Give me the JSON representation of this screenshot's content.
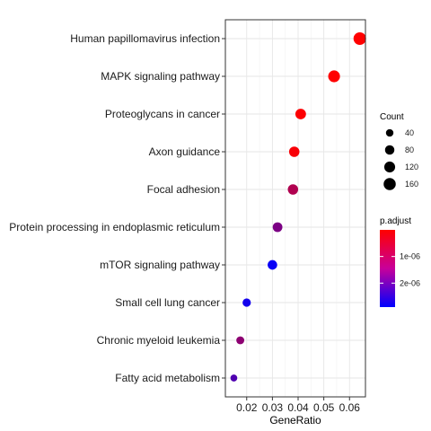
{
  "chart_data": {
    "type": "scatter",
    "title": "",
    "xlabel": "GeneRatio",
    "ylabel": "",
    "xlim": [
      0.0117,
      0.0662
    ],
    "x_ticks": [
      0.02,
      0.03,
      0.04,
      0.05,
      0.06
    ],
    "x_tick_labels": [
      "0.02",
      "0.03",
      "0.04",
      "0.05",
      "0.06"
    ],
    "grid": true,
    "legend_position": "right",
    "categories": [
      "Human papillomavirus infection",
      "MAPK signaling pathway",
      "Proteoglycans in cancer",
      "Axon guidance",
      "Focal adhesion",
      "Protein processing in endoplasmic reticulum",
      "mTOR signaling pathway",
      "Small cell lung cancer",
      "Chronic myeloid leukemia",
      "Fatty acid metabolism"
    ],
    "points": [
      {
        "term": "Human papillomavirus infection",
        "gene_ratio": 0.064,
        "count": 175,
        "p_adjust": 1e-09
      },
      {
        "term": "MAPK signaling pathway",
        "gene_ratio": 0.054,
        "count": 148,
        "p_adjust": 1e-09
      },
      {
        "term": "Proteoglycans in cancer",
        "gene_ratio": 0.041,
        "count": 112,
        "p_adjust": 2e-08
      },
      {
        "term": "Axon guidance",
        "gene_ratio": 0.0385,
        "count": 105,
        "p_adjust": 8e-08
      },
      {
        "term": "Focal adhesion",
        "gene_ratio": 0.038,
        "count": 104,
        "p_adjust": 9e-07
      },
      {
        "term": "Protein processing in endoplasmic reticulum",
        "gene_ratio": 0.032,
        "count": 87,
        "p_adjust": 1.5e-06
      },
      {
        "term": "mTOR signaling pathway",
        "gene_ratio": 0.03,
        "count": 83,
        "p_adjust": 2.8e-06
      },
      {
        "term": "Small cell lung cancer",
        "gene_ratio": 0.02,
        "count": 55,
        "p_adjust": 2.7e-06
      },
      {
        "term": "Chronic myeloid leukemia",
        "gene_ratio": 0.0175,
        "count": 48,
        "p_adjust": 1.3e-06
      },
      {
        "term": "Fatty acid metabolism",
        "gene_ratio": 0.015,
        "count": 30,
        "p_adjust": 2e-06
      }
    ],
    "legend_size": {
      "title": "Count",
      "values": [
        40,
        80,
        120,
        160
      ],
      "labels": [
        "40",
        "80",
        "120",
        "160"
      ]
    },
    "legend_color": {
      "title": "p.adjust",
      "range": [
        0,
        2.9e-06
      ],
      "ticks": [
        1e-06,
        2e-06
      ],
      "tick_labels": [
        "1e-06",
        "2e-06"
      ],
      "low_color": "#ff0000",
      "high_color": "#0000ff"
    }
  }
}
